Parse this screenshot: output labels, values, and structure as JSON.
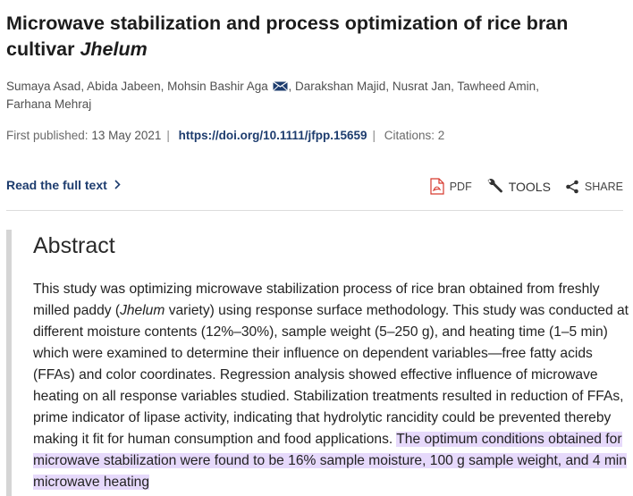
{
  "article": {
    "title_main": "Microwave stabilization and process optimization of rice bran cultivar ",
    "title_italic": "Jhelum",
    "authors": [
      "Sumaya Asad",
      "Abida Jabeen",
      "Mohsin Bashir Aga",
      "Darakshan Majid",
      "Nusrat Jan",
      "Tawheed Amin",
      "Farhana Mehraj"
    ],
    "first_published_label": "First published:",
    "first_published_date": "13 May 2021",
    "doi": "https://doi.org/10.1111/jfpp.15659",
    "citations": "Citations: 2"
  },
  "actions": {
    "read_full_text": "Read the full text",
    "pdf": "PDF",
    "tools": "TOOLS",
    "share": "SHARE"
  },
  "abstract": {
    "heading": "Abstract",
    "text_before_italic": "This study was optimizing microwave stabilization process of rice bran obtained from freshly milled paddy (",
    "italic": "Jhelum",
    "text_after_italic": " variety) using response surface methodology. This study was conducted at different moisture contents (12%–30%), sample weight (5–250 g), and heating time (1–5 min) which were examined to determine their influence on dependent variables—free fatty acids (FFAs) and color coordinates. Regression analysis showed effective influence of microwave heating on all response variables studied. Stabilization treatments resulted in reduction of FFAs, prime indicator of lipase activity, indicating that hydrolytic rancidity could be prevented thereby making it fit for human consumption and food applications. ",
    "highlighted": "The optimum conditions obtained for microwave stabilization were found to be 16% sample moisture, 100 g sample weight, and 4 min microwave heating"
  },
  "colors": {
    "link": "#1d3c6e",
    "highlight": "#e6d9fb",
    "pdf_red": "#d63a2f"
  }
}
